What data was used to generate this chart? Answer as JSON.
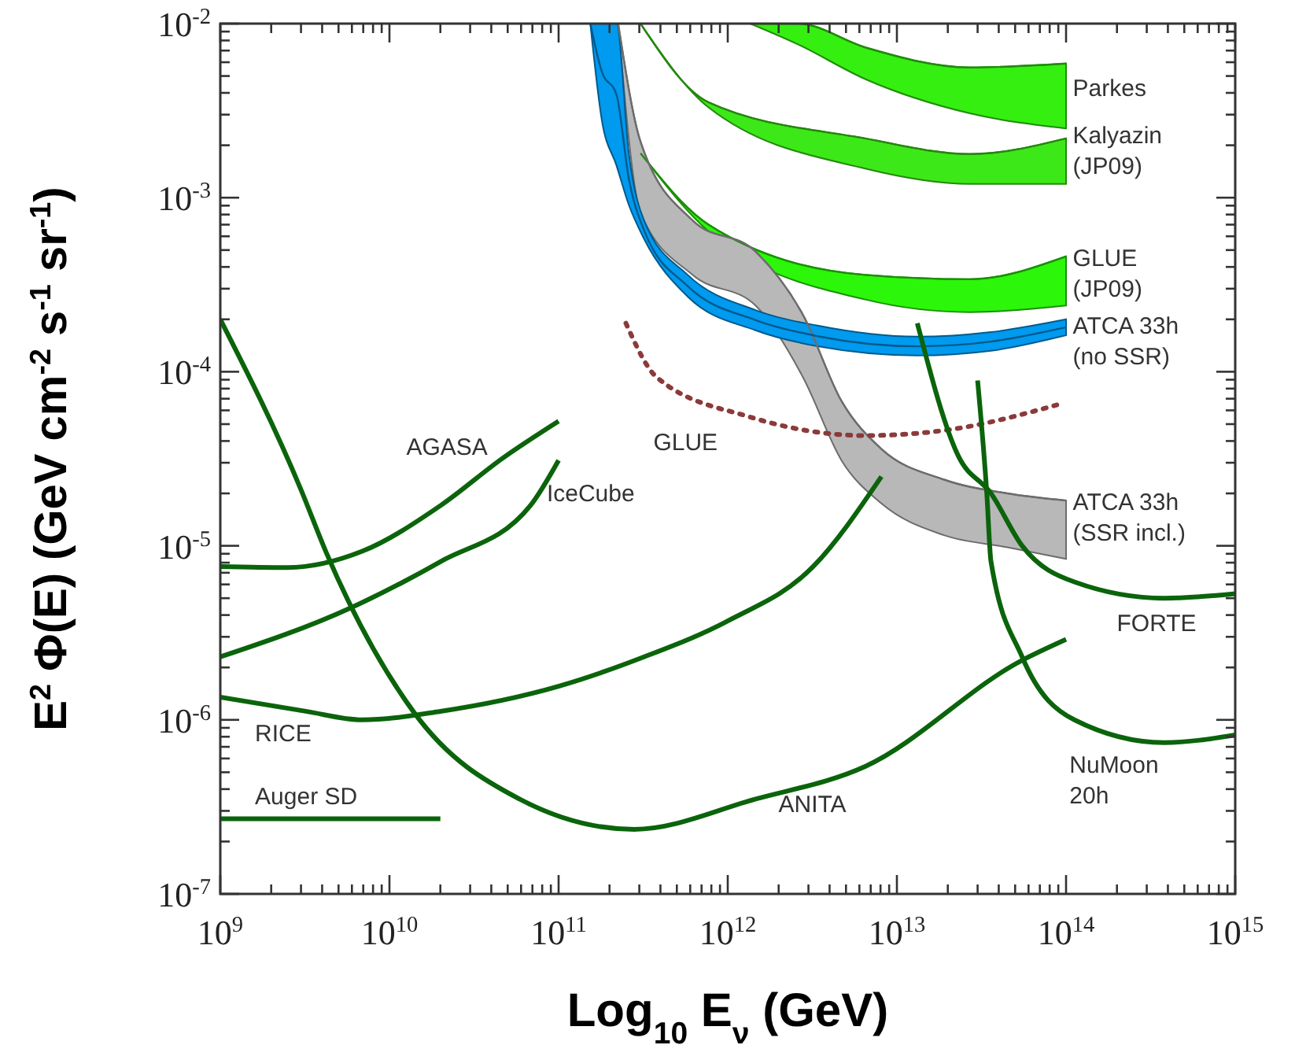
{
  "chart_data": {
    "type": "line",
    "xlabel": "Log$_{10}$ E$_{ν}$ (GeV)",
    "ylabel": "E$^{2}$ Φ(E) (GeV cm$^{-2}$ s$^{-1}$ sr$^{-1}$)",
    "log": "xy",
    "xlim": [
      1000000000.0,
      1000000000000000.0
    ],
    "ylim": [
      1e-07,
      0.01
    ],
    "xticks": [
      {
        "value": 1000000000.0,
        "label": "10$^{9}$"
      },
      {
        "value": 10000000000.0,
        "label": "10$^{10}$"
      },
      {
        "value": 100000000000.0,
        "label": "10$^{11}$"
      },
      {
        "value": 1000000000000.0,
        "label": "10$^{12}$"
      },
      {
        "value": 10000000000000.0,
        "label": "10$^{13}$"
      },
      {
        "value": 100000000000000.0,
        "label": "10$^{14}$"
      },
      {
        "value": 1000000000000000.0,
        "label": "10$^{15}$"
      }
    ],
    "yticks": [
      {
        "value": 1e-07,
        "label": "10$^{-7}$"
      },
      {
        "value": 1e-06,
        "label": "10$^{-6}$"
      },
      {
        "value": 1e-05,
        "label": "10$^{-5}$"
      },
      {
        "value": 0.0001,
        "label": "10$^{-4}$"
      },
      {
        "value": 0.001,
        "label": "10$^{-3}$"
      },
      {
        "value": 0.01,
        "label": "10$^{-2}$"
      }
    ],
    "series": [
      {
        "color": "#1f8c0a",
        "x": [
          1360000000000.0,
          2600000000000.0,
          6500000000000.0,
          27000000000000.0,
          100000000000000.0
        ],
        "values": [
          0.01,
          0.01,
          0.0073,
          0.0056,
          0.0059
        ],
        "lower": [
          0.01,
          0.0076,
          0.0048,
          0.00305,
          0.0025
        ],
        "upper": [
          0.01,
          0.01,
          0.0073,
          0.0056,
          0.0059
        ]
      },
      {
        "color": "#24880e",
        "x": [
          305000000000.0,
          770000000000.0,
          6500000000000.0,
          27000000000000.0,
          100000000000000.0
        ],
        "values": [
          0.01,
          0.00353,
          0.00219,
          0.00178,
          0.00219
        ],
        "lower": [
          0.01,
          0.0033,
          0.00147,
          0.0012,
          0.0012
        ],
        "upper": [
          0.01,
          0.00353,
          0.00219,
          0.00178,
          0.00219
        ]
      },
      {
        "color": "#1a9006",
        "x": [
          305000000000.0,
          770000000000.0,
          6500000000000.0,
          27000000000000.0,
          100000000000000.0
        ],
        "values": [
          0.0018,
          0.0007,
          0.00036,
          0.00034,
          0.00046
        ],
        "lower": [
          0.0018,
          0.00064,
          0.00026,
          0.00022,
          0.00024
        ],
        "upper": [
          0.0018,
          0.0007,
          0.00036,
          0.00034,
          0.00046
        ]
      },
      {
        "color": "#6c6c6c",
        "x": [
          225000000000.0,
          305000000000.0,
          620000000000.0,
          1460000000000.0,
          2800000000000.0,
          4700000000000.0,
          8100000000000.0,
          19000000000000.0,
          45000000000000.0,
          100000000000000.0
        ],
        "values": [
          0.01,
          0.0021,
          0.00074,
          0.00049,
          0.00021,
          6.8e-05,
          3.6e-05,
          2.4e-05,
          2e-05,
          1.82e-05
        ],
        "lower": [
          0.01,
          0.00082,
          0.00036,
          0.00024,
          9.2e-05,
          3.1e-05,
          1.75e-05,
          1.15e-05,
          9.8e-06,
          8.4e-06
        ],
        "upper": [
          0.01,
          0.0021,
          0.00074,
          0.00049,
          0.00021,
          6.8e-05,
          3.6e-05,
          2.4e-05,
          2e-05,
          1.82e-05
        ]
      },
      {
        "color": "#005a8c",
        "x": [
          154000000000.0,
          180000000000.0,
          220000000000.0,
          260000000000.0,
          320000000000.0,
          580000000000.0,
          1460000000000.0,
          3400000000000.0,
          13200000000000.0,
          36000000000000.0,
          100000000000000.0
        ],
        "values": [
          0.01,
          0.0053,
          0.0039,
          0.00129,
          0.00065,
          0.00031,
          0.000198,
          0.00016,
          0.00014,
          0.000149,
          0.00018
        ],
        "lower": [
          0.01,
          0.0028,
          0.00153,
          0.00091,
          0.00058,
          0.00027,
          0.000173,
          0.00014,
          0.000124,
          0.000132,
          0.000162
        ],
        "upper": [
          0.01,
          0.01,
          0.01,
          0.0018,
          0.00074,
          0.00036,
          0.000226,
          0.000184,
          0.000159,
          0.000169,
          0.0002
        ]
      },
      {
        "color": "#8b3a3a",
        "line_style": "dotted",
        "x": [
          250000000000.0,
          380000000000.0,
          1350000000000.0,
          6500000000000.0,
          19000000000000.0,
          91000000000000.0
        ],
        "values": [
          0.00019,
          9.3e-05,
          5.5e-05,
          4.3e-05,
          4.6e-05,
          6.5e-05
        ]
      },
      {
        "color": "#0b640b",
        "x": [
          1000000000.0,
          2500000000.0,
          6900000000.0,
          20000000000.0,
          47000000000.0,
          100000000000.0
        ],
        "values": [
          7.6e-06,
          7.5e-06,
          9.3e-06,
          1.7e-05,
          3.2e-05,
          5.2e-05
        ]
      },
      {
        "color": "#0b640b",
        "x": [
          1000000000.0,
          5900000000.0,
          20000000000.0,
          68000000000.0,
          100000000000.0
        ],
        "values": [
          2.3e-06,
          4.4e-06,
          8.1e-06,
          1.7e-05,
          3.1e-05
        ]
      },
      {
        "color": "#0b640b",
        "x": [
          1000000000.0,
          3200000000.0,
          6900000000.0,
          20000000000.0,
          100000000000.0,
          320000000000.0,
          1000000000000.0,
          3200000000000.0,
          8100000000000.0
        ],
        "values": [
          1.35e-06,
          1.12e-06,
          1e-06,
          1.12e-06,
          1.56e-06,
          2.3e-06,
          3.7e-06,
          7.6e-06,
          2.5e-05
        ]
      },
      {
        "color": "#0b640b",
        "x": [
          1000000000.0,
          20000000000.0
        ],
        "values": [
          2.7e-07,
          2.7e-07
        ]
      },
      {
        "color": "#0b640b",
        "x": [
          1000000000.0,
          3000000000.0,
          4200000000.0,
          14000000000.0,
          59000000000.0,
          280000000000.0,
          1450000000000.0,
          6500000000000.0,
          55000000000000.0,
          100000000000000.0
        ],
        "values": [
          0.0002,
          2.1e-05,
          9.3e-06,
          1.1e-06,
          3.5e-07,
          2.35e-07,
          3.5e-07,
          5.4e-07,
          2.2e-06,
          2.9e-06
        ]
      },
      {
        "color": "#0b640b",
        "x": [
          13200000000000.0,
          23000000000000.0,
          36000000000000.0,
          55000000000000.0,
          112000000000000.0,
          380000000000000.0,
          1000000000000000.0
        ],
        "values": [
          0.00019,
          3.3e-05,
          2e-05,
          1e-05,
          6.2e-06,
          5e-06,
          5.3e-06
        ]
      },
      {
        "color": "#0b640b",
        "x": [
          30000000000000.0,
          34000000000000.0,
          36000000000000.0,
          55000000000000.0,
          112000000000000.0,
          380000000000000.0,
          1000000000000000.0
        ],
        "values": [
          8.9e-05,
          2e-05,
          8.1e-06,
          2.3e-06,
          1e-06,
          7.4e-07,
          8.2e-07
        ]
      }
    ],
    "annotations": [
      "Parkes",
      "Kalyazin\n(JP09)",
      "GLUE\n(JP09)",
      "ATCA 33h\n(no SSR)",
      "ATCA 33h\n(SSR incl.)",
      "FORTE",
      "NuMoon\n20h",
      "ANITA",
      "RICE",
      "Auger SD",
      "AGASA",
      "IceCube",
      "GLUE"
    ]
  }
}
